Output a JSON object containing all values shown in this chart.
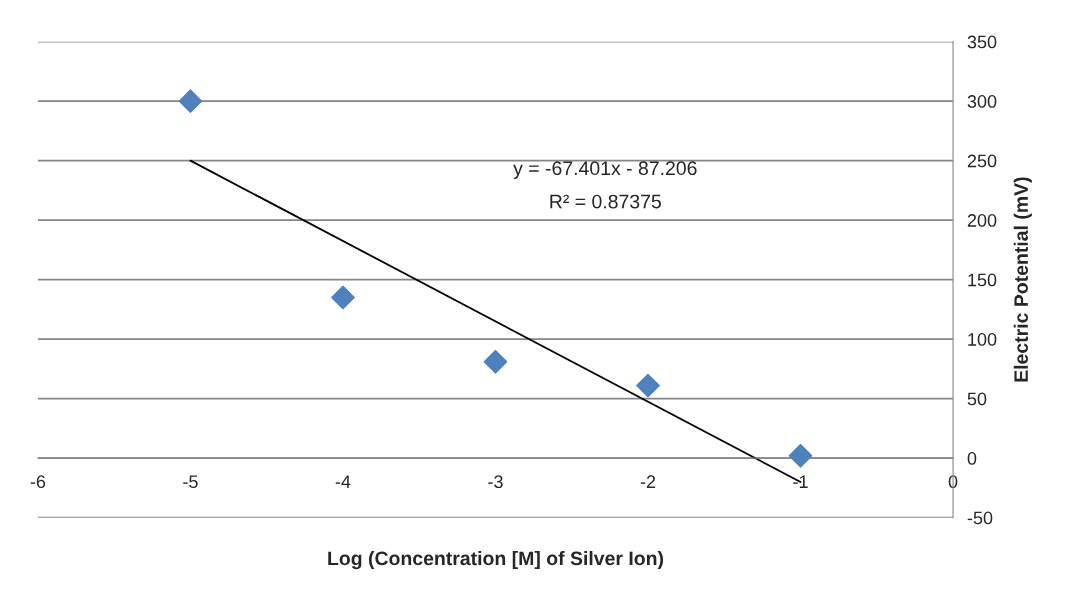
{
  "chart_data": {
    "type": "scatter",
    "xlabel": "Log (Concentration [M] of Silver Ion)",
    "ylabel": "Electric Potential (mV)",
    "x": [
      -5,
      -4,
      -3,
      -2,
      -1
    ],
    "series": [
      {
        "color": "#4f81bd",
        "marker": "diamond",
        "values": [
          300,
          135,
          81,
          61,
          2
        ]
      },
      {
        "type": "line",
        "color": "#000000",
        "x": [
          -5,
          -1
        ],
        "values": [
          250,
          -20
        ],
        "line_style": "solid"
      }
    ],
    "xlim": [
      -6,
      0
    ],
    "xticks": [
      -6,
      -5,
      -4,
      -3,
      -2,
      -1,
      0
    ],
    "ylim": [
      -50,
      350
    ],
    "yticks": [
      -50,
      0,
      50,
      100,
      150,
      200,
      250,
      300,
      350
    ],
    "grid": "y",
    "legend": false,
    "annotations": [
      "y = -67.401x - 87.206",
      "R² = 0.87375"
    ]
  }
}
